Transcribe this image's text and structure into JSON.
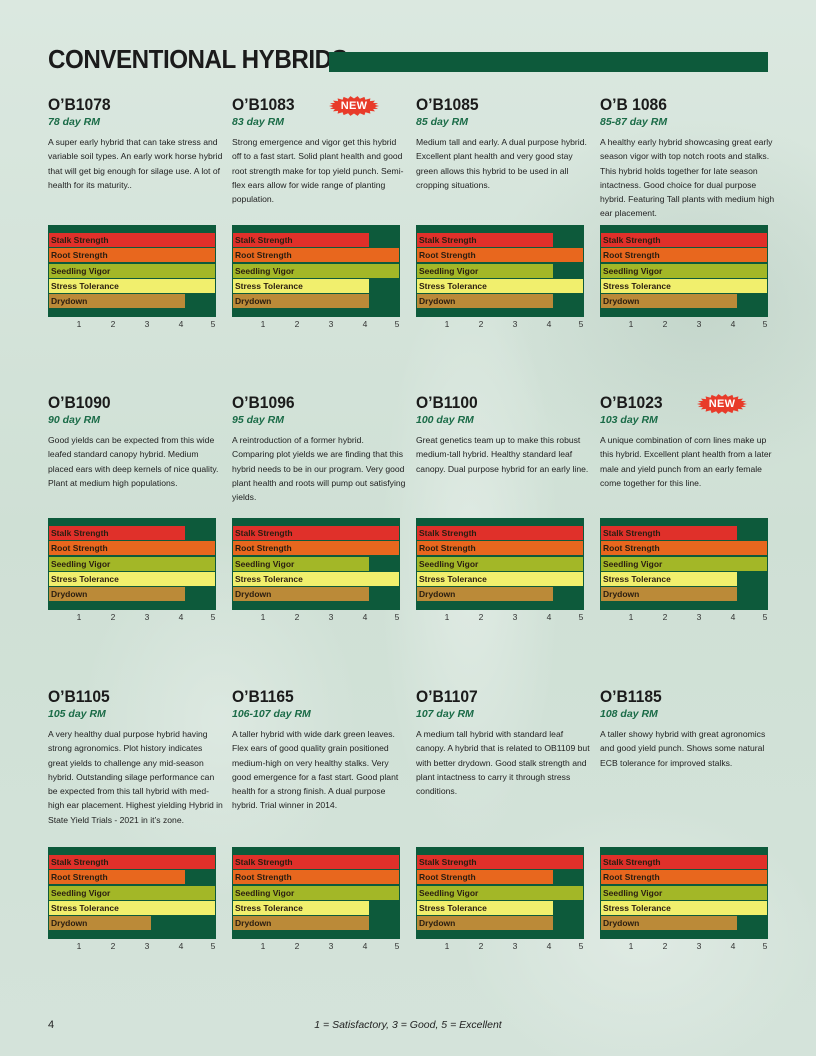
{
  "title": "CONVENTIONAL HYBRIDS",
  "colors": {
    "stalk_strength": "#e0302a",
    "root_strength": "#e8671e",
    "seedling_vigor": "#a3b727",
    "stress_tolerance": "#f1ef6d",
    "drydown": "#bb8a38",
    "chart_background": "#0d5a3b",
    "title_bar": "#0d5a3b",
    "rm_text": "#1a6b47",
    "new_badge": "#e83b2a"
  },
  "trait_labels": [
    "Stalk Strength",
    "Root Strength",
    "Seedling Vigor",
    "Stress Tolerance",
    "Drydown"
  ],
  "axis_ticks": [
    "1",
    "2",
    "3",
    "4",
    "5"
  ],
  "hybrids": [
    {
      "name": "O’B1078",
      "rm": "78 day RM",
      "badge": "",
      "description": "A super early hybrid that can take stress and variable soil types. An early work horse hybrid that will get big enough for silage use. A lot of health for its maturity..",
      "ratings": [
        5,
        5,
        5,
        5,
        4
      ]
    },
    {
      "name": "O’B1083",
      "rm": "83 day RM",
      "badge": "NEW",
      "description": "Strong emergence and vigor get this hybrid off to a fast start. Solid plant health and good root strength make for top yield punch. Semi-flex ears allow for wide range of planting population.",
      "ratings": [
        4,
        5,
        5,
        4,
        4
      ]
    },
    {
      "name": "O’B1085",
      "rm": "85 day RM",
      "badge": "",
      "description": "Medium tall and early. A dual purpose hybrid. Excellent plant health and very good stay green allows this hybrid to be used in all cropping situations.",
      "ratings": [
        4,
        5,
        4,
        5,
        4
      ]
    },
    {
      "name": "O’B 1086",
      "rm": "85-87 day RM",
      "badge": "",
      "description": "A healthy early hybrid showcasing great early season vigor with top notch roots and stalks. This hybrid holds together for late season intactness. Good choice for dual purpose hybrid. Featuring Tall plants with medium high ear placement.",
      "ratings": [
        5,
        5,
        5,
        5,
        4
      ]
    },
    {
      "name": "O’B1090",
      "rm": "90 day RM",
      "badge": "",
      "description": "Good yields can be expected from this wide leafed standard canopy hybrid. Medium placed ears with deep kernels of nice quality. Plant at medium high populations.",
      "ratings": [
        4,
        5,
        5,
        5,
        4
      ]
    },
    {
      "name": "O’B1096",
      "rm": "95 day RM",
      "badge": "",
      "description": "A reintroduction of a former hybrid. Comparing plot yields we are finding that this hybrid needs to be in our program. Very good plant health and roots will pump out satisfying yields.",
      "ratings": [
        5,
        5,
        4,
        5,
        4
      ]
    },
    {
      "name": "O’B1100",
      "rm": "100 day RM",
      "badge": "",
      "description": "Great genetics team up to make this robust medium-tall hybrid. Healthy standard leaf canopy. Dual purpose hybrid for an early line.",
      "ratings": [
        5,
        5,
        5,
        5,
        4
      ]
    },
    {
      "name": "O’B1023",
      "rm": "103 day RM",
      "badge": "NEW",
      "description": "A unique combination of corn lines make up this hybrid. Excellent plant health from a later male and yield punch from an early female come together for this line.",
      "ratings": [
        4,
        5,
        5,
        4,
        4
      ]
    },
    {
      "name": "O’B1105",
      "rm": "105 day RM",
      "badge": "",
      "description": "A very healthy dual purpose hybrid having strong agronomics. Plot history indicates great yields to challenge any mid-season hybrid. Outstanding silage performance can be expected from this tall hybrid with med-high ear placement. Highest yielding Hybrid in State Yield Trials - 2021 in it’s zone.",
      "ratings": [
        5,
        4,
        5,
        5,
        3
      ]
    },
    {
      "name": "O’B1165",
      "rm": "106-107 day RM",
      "badge": "",
      "description": "A taller hybrid with wide dark green leaves. Flex ears of good quality grain positioned medium-high on very healthy stalks. Very good emergence for a fast start. Good plant health for a strong finish. A dual purpose hybrid. Trial winner in 2014.",
      "ratings": [
        5,
        5,
        5,
        4,
        4
      ]
    },
    {
      "name": "O’B1107",
      "rm": "107 day RM",
      "badge": "",
      "description": "A medium tall hybrid with standard leaf canopy. A hybrid that is related to OB1109 but with better drydown. Good stalk strength and plant intactness to carry it through stress conditions.",
      "ratings": [
        5,
        4,
        5,
        4,
        4
      ]
    },
    {
      "name": "O’B1185",
      "rm": "108 day RM",
      "badge": "",
      "description": "A taller showy hybrid with great agronomics and good yield punch. Shows some natural ECB tolerance for improved stalks.",
      "ratings": [
        5,
        5,
        5,
        5,
        4
      ]
    }
  ],
  "footer": {
    "page_number": "4",
    "scale_note": "1 = Satisfactory, 3 = Good, 5 = Excellent"
  }
}
